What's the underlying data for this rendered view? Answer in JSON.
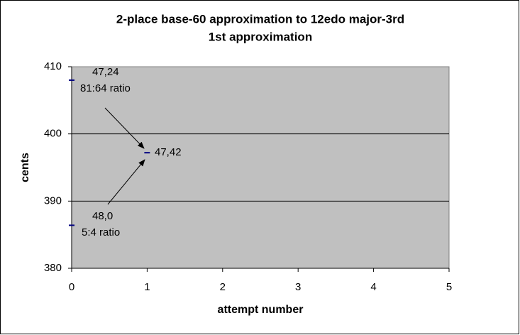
{
  "chart_data": {
    "type": "scatter",
    "title": "2-place base-60 approximation to 12edo major-3rd",
    "subtitle": "1st approximation",
    "x_label": "attempt number",
    "y_label": "cents",
    "series": [
      {
        "color": "#000080",
        "x": [
          0,
          1,
          0
        ],
        "values": [
          408,
          397.2,
          386.4
        ]
      }
    ],
    "xlim": [
      0,
      5
    ],
    "xticks": [
      0,
      1,
      2,
      3,
      4,
      5
    ],
    "ylim": [
      380,
      410
    ],
    "yticks": [
      380,
      390,
      400,
      410
    ],
    "grid": true,
    "annotations": [
      "47,24",
      "81:64 ratio",
      "47,42",
      "48,0",
      "5:4 ratio"
    ]
  }
}
